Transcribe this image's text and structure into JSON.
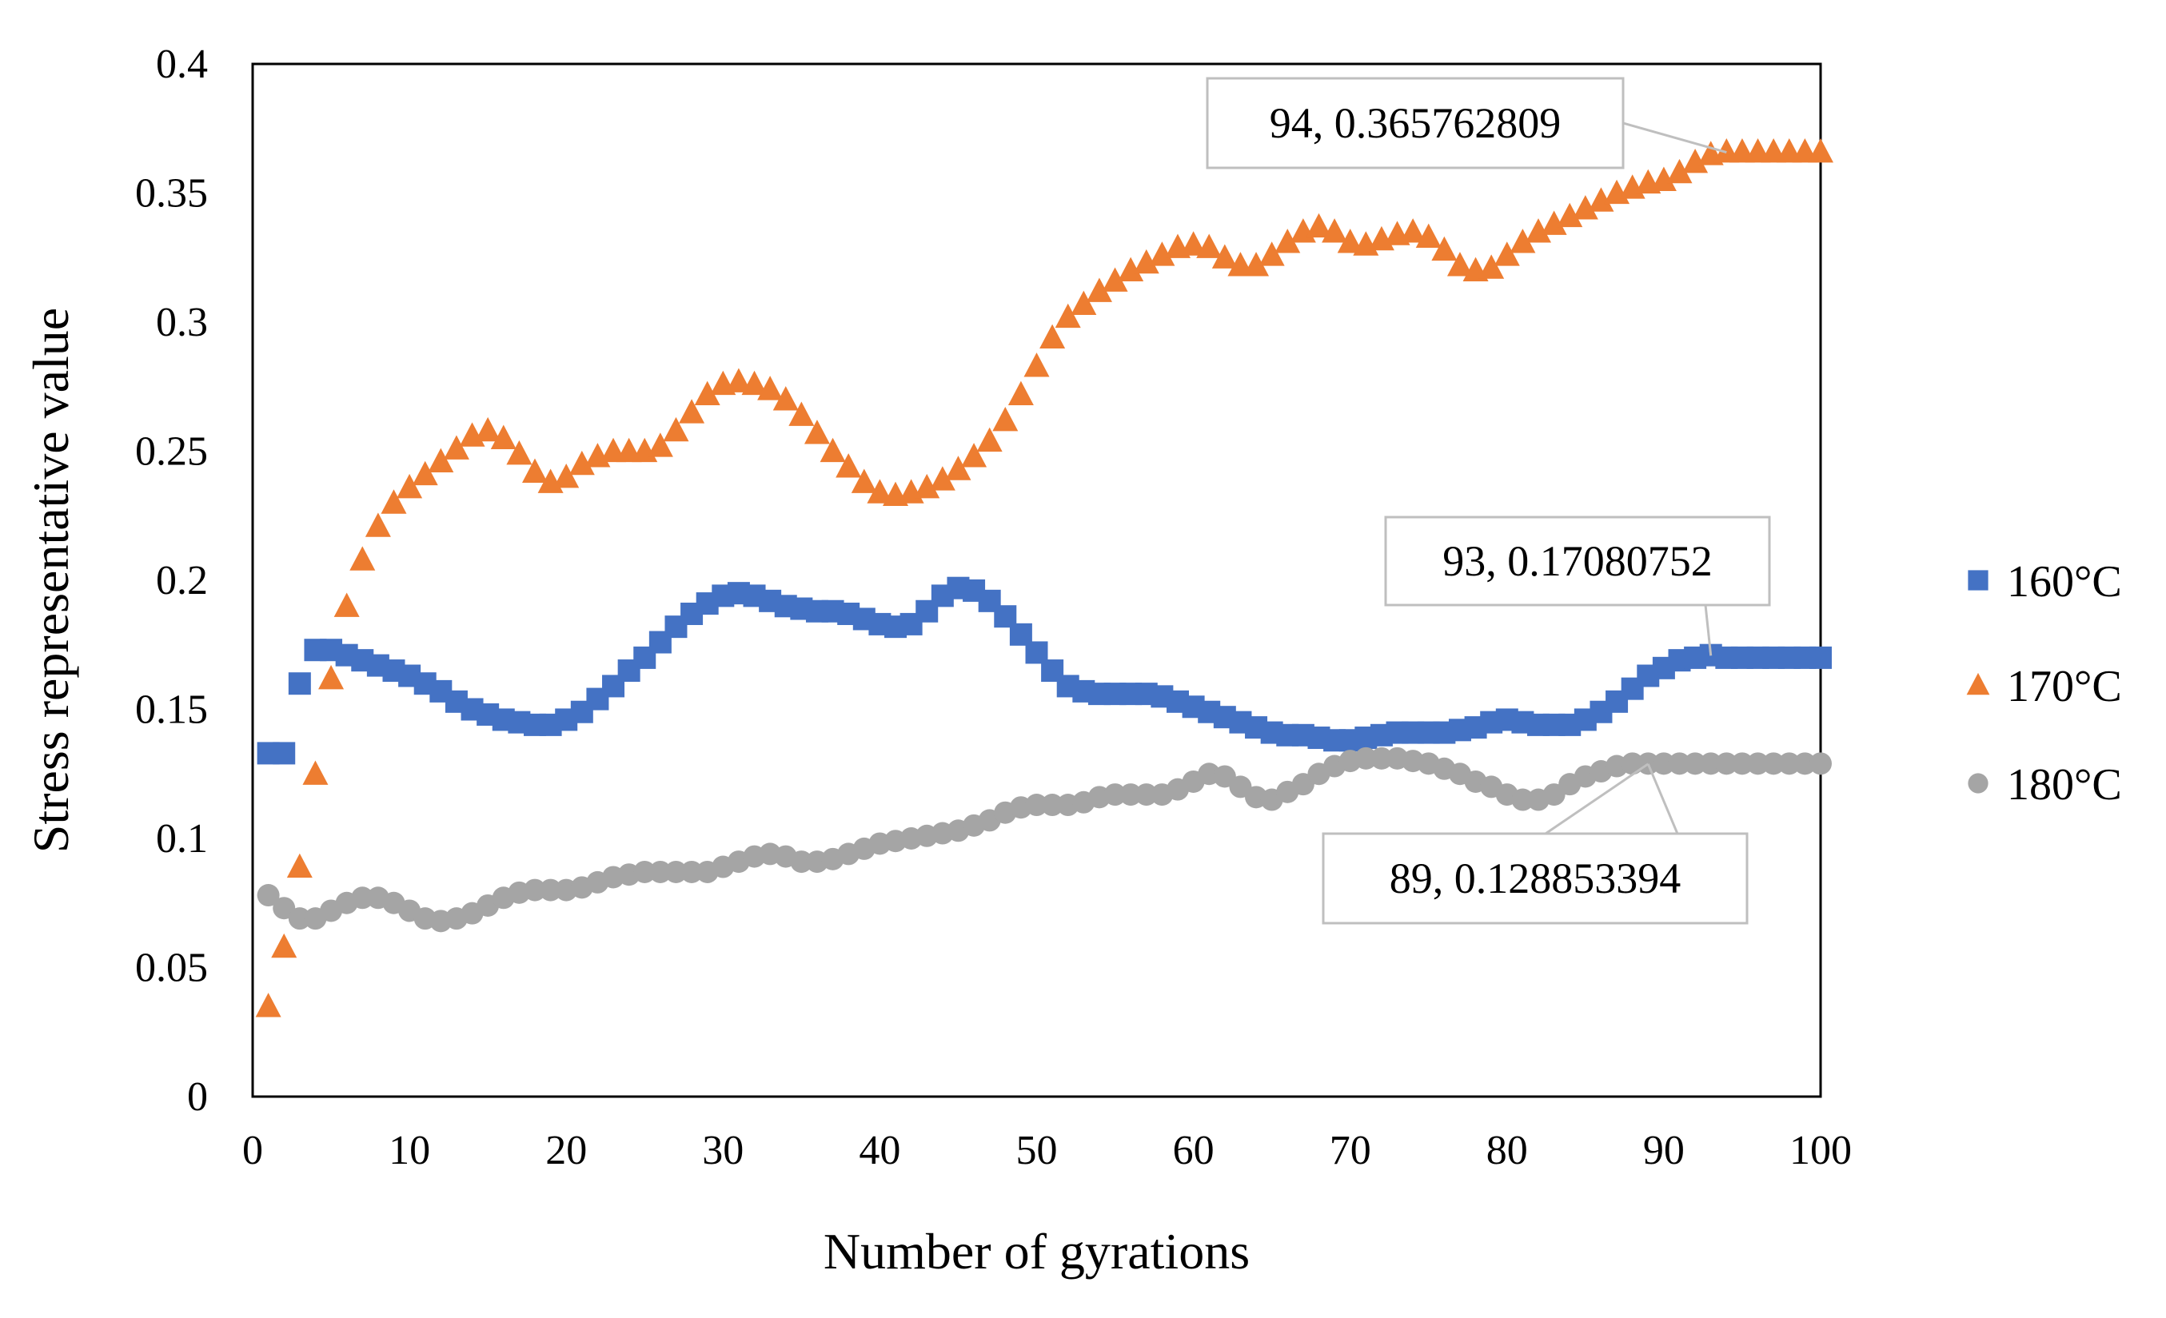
{
  "chart_data": {
    "type": "scatter",
    "title": "",
    "xlabel": "Number of gyrations",
    "ylabel": "Stress representative value",
    "xlim": [
      0,
      100
    ],
    "ylim": [
      0,
      0.4
    ],
    "x_ticks": [
      "0",
      "10",
      "20",
      "30",
      "40",
      "50",
      "60",
      "70",
      "80",
      "90",
      "100"
    ],
    "y_ticks": [
      "0",
      "0.05",
      "0.1",
      "0.15",
      "0.2",
      "0.25",
      "0.3",
      "0.35",
      "0.4"
    ],
    "grid": false,
    "legend_position": "right",
    "x": [
      1,
      2,
      3,
      4,
      5,
      6,
      7,
      8,
      9,
      10,
      11,
      12,
      13,
      14,
      15,
      16,
      17,
      18,
      19,
      20,
      21,
      22,
      23,
      24,
      25,
      26,
      27,
      28,
      29,
      30,
      31,
      32,
      33,
      34,
      35,
      36,
      37,
      38,
      39,
      40,
      41,
      42,
      43,
      44,
      45,
      46,
      47,
      48,
      49,
      50,
      51,
      52,
      53,
      54,
      55,
      56,
      57,
      58,
      59,
      60,
      61,
      62,
      63,
      64,
      65,
      66,
      67,
      68,
      69,
      70,
      71,
      72,
      73,
      74,
      75,
      76,
      77,
      78,
      79,
      80,
      81,
      82,
      83,
      84,
      85,
      86,
      87,
      88,
      89,
      90,
      91,
      92,
      93,
      94,
      95,
      96,
      97,
      98,
      99,
      100
    ],
    "series": [
      {
        "name": "160°C",
        "marker": "square",
        "color": "#4472C4",
        "values": [
          0.133,
          0.133,
          0.16,
          0.173,
          0.173,
          0.171,
          0.169,
          0.167,
          0.165,
          0.163,
          0.16,
          0.157,
          0.153,
          0.15,
          0.148,
          0.146,
          0.145,
          0.144,
          0.144,
          0.146,
          0.149,
          0.154,
          0.159,
          0.165,
          0.17,
          0.176,
          0.182,
          0.187,
          0.191,
          0.194,
          0.195,
          0.194,
          0.192,
          0.19,
          0.189,
          0.188,
          0.188,
          0.187,
          0.185,
          0.183,
          0.182,
          0.183,
          0.188,
          0.194,
          0.197,
          0.196,
          0.192,
          0.186,
          0.179,
          0.172,
          0.165,
          0.159,
          0.157,
          0.156,
          0.156,
          0.156,
          0.156,
          0.155,
          0.153,
          0.151,
          0.149,
          0.147,
          0.145,
          0.143,
          0.141,
          0.14,
          0.14,
          0.139,
          0.138,
          0.138,
          0.139,
          0.14,
          0.141,
          0.141,
          0.141,
          0.141,
          0.142,
          0.143,
          0.145,
          0.146,
          0.145,
          0.144,
          0.144,
          0.144,
          0.146,
          0.149,
          0.153,
          0.158,
          0.163,
          0.166,
          0.169,
          0.17,
          0.171,
          0.17,
          0.17,
          0.17,
          0.17,
          0.17,
          0.17,
          0.17
        ]
      },
      {
        "name": "170°C",
        "marker": "triangle",
        "color": "#ED7D31",
        "values": [
          0.035,
          0.058,
          0.089,
          0.125,
          0.162,
          0.19,
          0.208,
          0.221,
          0.23,
          0.236,
          0.241,
          0.246,
          0.251,
          0.256,
          0.258,
          0.255,
          0.249,
          0.242,
          0.238,
          0.24,
          0.245,
          0.248,
          0.25,
          0.25,
          0.25,
          0.252,
          0.258,
          0.265,
          0.272,
          0.276,
          0.277,
          0.276,
          0.274,
          0.27,
          0.264,
          0.257,
          0.25,
          0.244,
          0.238,
          0.234,
          0.233,
          0.234,
          0.236,
          0.239,
          0.243,
          0.248,
          0.254,
          0.262,
          0.272,
          0.283,
          0.294,
          0.302,
          0.307,
          0.312,
          0.316,
          0.32,
          0.323,
          0.326,
          0.329,
          0.33,
          0.329,
          0.325,
          0.322,
          0.322,
          0.326,
          0.331,
          0.335,
          0.337,
          0.335,
          0.331,
          0.33,
          0.332,
          0.334,
          0.335,
          0.333,
          0.328,
          0.322,
          0.32,
          0.321,
          0.326,
          0.331,
          0.335,
          0.338,
          0.341,
          0.344,
          0.347,
          0.35,
          0.352,
          0.354,
          0.355,
          0.358,
          0.362,
          0.365,
          0.366,
          0.366,
          0.366,
          0.366,
          0.366,
          0.366,
          0.366
        ]
      },
      {
        "name": "180°C",
        "marker": "circle",
        "color": "#A5A5A5",
        "values": [
          0.078,
          0.073,
          0.069,
          0.069,
          0.072,
          0.075,
          0.077,
          0.077,
          0.075,
          0.072,
          0.069,
          0.068,
          0.069,
          0.071,
          0.074,
          0.077,
          0.079,
          0.08,
          0.08,
          0.08,
          0.081,
          0.083,
          0.085,
          0.086,
          0.087,
          0.087,
          0.087,
          0.087,
          0.087,
          0.089,
          0.091,
          0.093,
          0.094,
          0.093,
          0.091,
          0.091,
          0.092,
          0.094,
          0.096,
          0.098,
          0.099,
          0.1,
          0.101,
          0.102,
          0.103,
          0.105,
          0.107,
          0.11,
          0.112,
          0.113,
          0.113,
          0.113,
          0.114,
          0.116,
          0.117,
          0.117,
          0.117,
          0.117,
          0.119,
          0.122,
          0.125,
          0.124,
          0.12,
          0.116,
          0.115,
          0.118,
          0.121,
          0.125,
          0.128,
          0.13,
          0.131,
          0.131,
          0.131,
          0.13,
          0.129,
          0.127,
          0.125,
          0.122,
          0.12,
          0.117,
          0.115,
          0.115,
          0.117,
          0.121,
          0.124,
          0.126,
          0.128,
          0.129,
          0.129,
          0.129,
          0.129,
          0.129,
          0.129,
          0.129,
          0.129,
          0.129,
          0.129,
          0.129,
          0.129,
          0.129
        ]
      }
    ],
    "annotations": [
      {
        "label": "94, 0.365762809",
        "series": "170°C",
        "x": 94,
        "y": 0.365762809
      },
      {
        "label": "93, 0.17080752",
        "series": "160°C",
        "x": 93,
        "y": 0.17080752
      },
      {
        "label": "89, 0.128853394",
        "series": "180°C",
        "x": 89,
        "y": 0.128853394
      }
    ]
  }
}
